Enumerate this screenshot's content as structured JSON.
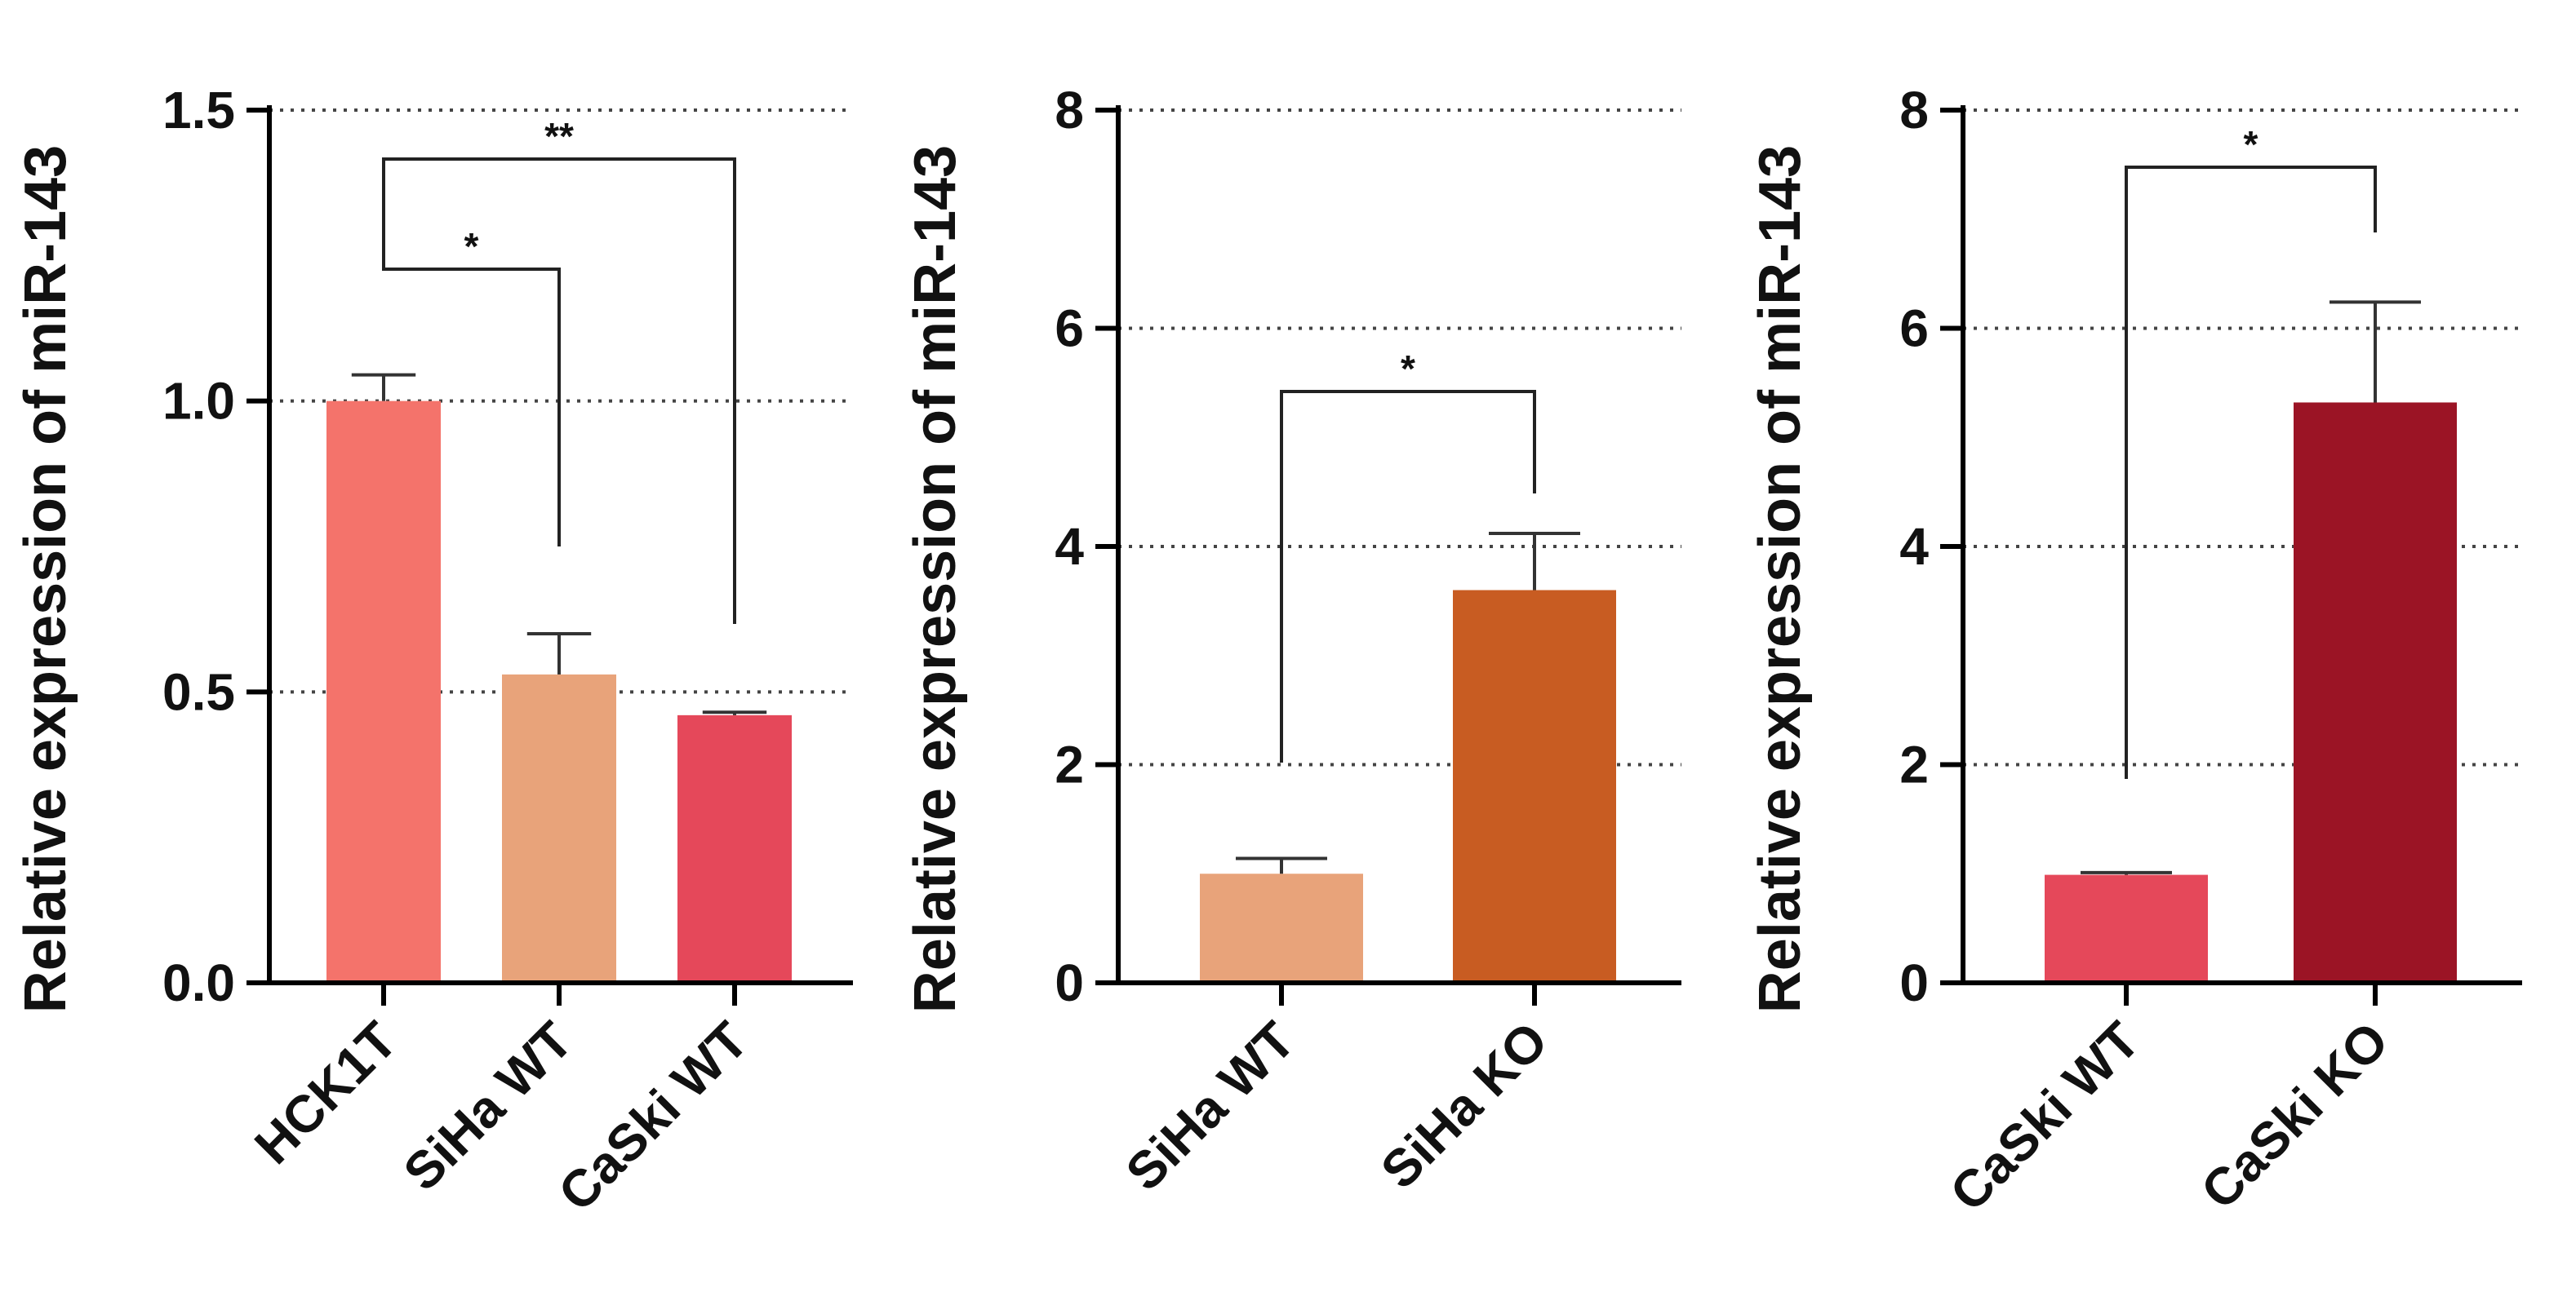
{
  "figure_title": "",
  "chart_data": [
    {
      "type": "bar",
      "title": "",
      "xlabel": "",
      "ylabel": "Relative expression of miR-143",
      "ylim": [
        0,
        1.5
      ],
      "yticks": [
        "0.0",
        "0.5",
        "1.0",
        "1.5"
      ],
      "grid": "horizontal dotted",
      "categories": [
        "HCK1T",
        "SiHa WT",
        "CaSki WT"
      ],
      "values": [
        1.0,
        0.53,
        0.46
      ],
      "errors": [
        0.045,
        0.07,
        0.005
      ],
      "colors": [
        "#f4736b",
        "#e8a37a",
        "#e5485a"
      ],
      "significance": [
        {
          "from": "HCK1T",
          "to": "CaSki WT",
          "label": "**"
        },
        {
          "from": "HCK1T",
          "to": "SiHa WT",
          "label": "*"
        }
      ]
    },
    {
      "type": "bar",
      "title": "",
      "xlabel": "",
      "ylabel": "Relative expression of miR-143",
      "ylim": [
        0,
        8
      ],
      "yticks": [
        "0",
        "2",
        "4",
        "6",
        "8"
      ],
      "grid": "horizontal dotted",
      "categories": [
        "SiHa WT",
        "SiHa KO"
      ],
      "values": [
        1.0,
        3.6
      ],
      "errors": [
        0.14,
        0.52
      ],
      "colors": [
        "#e8a37a",
        "#c85c22"
      ],
      "significance": [
        {
          "from": "SiHa WT",
          "to": "SiHa KO",
          "label": "*"
        }
      ]
    },
    {
      "type": "bar",
      "title": "",
      "xlabel": "",
      "ylabel": "Relative expression of miR-143",
      "ylim": [
        0,
        8
      ],
      "yticks": [
        "0",
        "2",
        "4",
        "6",
        "8"
      ],
      "grid": "horizontal dotted",
      "categories": [
        "CaSki WT",
        "CaSki KO"
      ],
      "values": [
        0.99,
        5.32
      ],
      "errors": [
        0.02,
        0.92
      ],
      "colors": [
        "#e5485a",
        "#9b1425"
      ],
      "significance": [
        {
          "from": "CaSki WT",
          "to": "CaSki KO",
          "label": "*"
        }
      ]
    }
  ]
}
